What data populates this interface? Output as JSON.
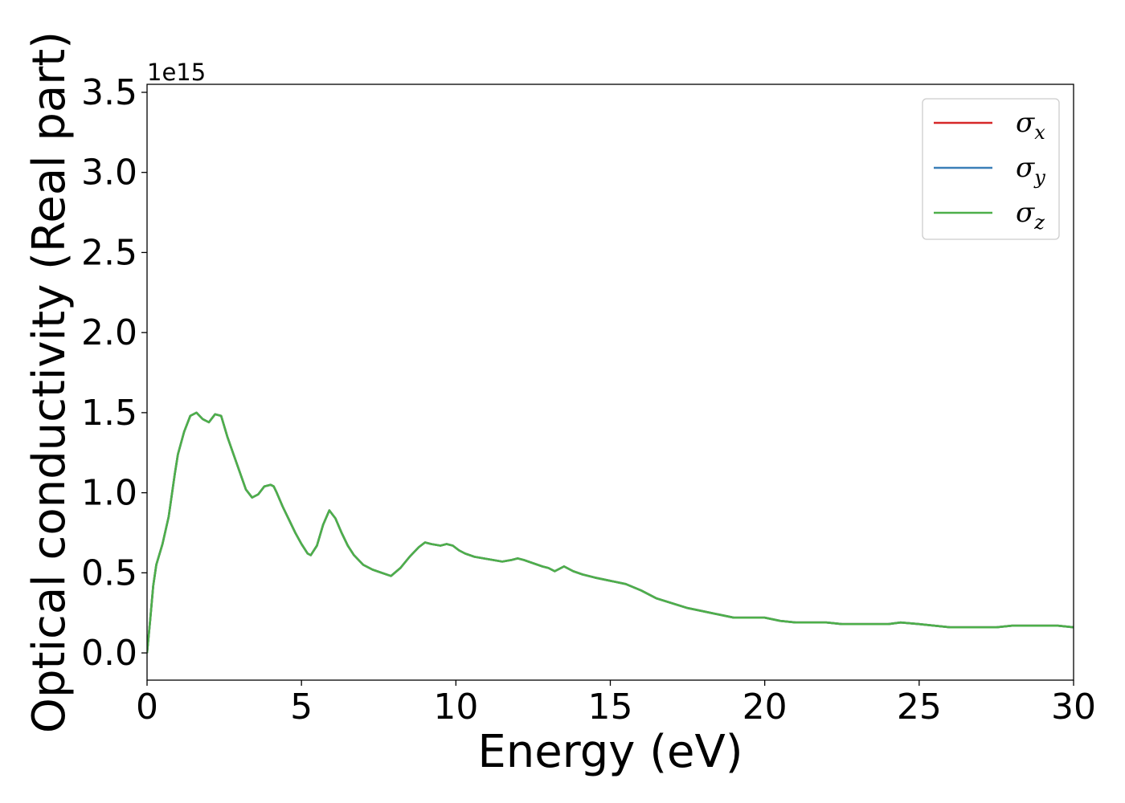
{
  "chart_data": {
    "type": "line",
    "xlabel": "Energy (eV)",
    "ylabel": "Optical conductivity (Real part)",
    "y_offset_label": "1e15",
    "y_multiplier": 1000000000000000.0,
    "xlim": [
      0,
      30
    ],
    "ylim": [
      -0.17,
      3.55
    ],
    "xticks": [
      0,
      5,
      10,
      15,
      20,
      25,
      30
    ],
    "xtick_labels": [
      "0",
      "5",
      "10",
      "15",
      "20",
      "25",
      "30"
    ],
    "yticks": [
      0.0,
      0.5,
      1.0,
      1.5,
      2.0,
      2.5,
      3.0,
      3.5
    ],
    "ytick_labels": [
      "0.0",
      "0.5",
      "1.0",
      "1.5",
      "2.0",
      "2.5",
      "3.0",
      "3.5"
    ],
    "grid": false,
    "legend_position": "top-right",
    "legend": [
      {
        "symbol": "σ",
        "sub": "x",
        "color": "#d62728"
      },
      {
        "symbol": "σ",
        "sub": "y",
        "color": "#3a7fb8"
      },
      {
        "symbol": "σ",
        "sub": "z",
        "color": "#4daf4a"
      }
    ],
    "x": [
      0,
      0.1,
      0.2,
      0.3,
      0.5,
      0.7,
      0.9,
      1.0,
      1.2,
      1.4,
      1.6,
      1.8,
      2.0,
      2.2,
      2.4,
      2.6,
      2.8,
      3.0,
      3.2,
      3.4,
      3.6,
      3.8,
      4.0,
      4.1,
      4.2,
      4.4,
      4.6,
      4.8,
      5.0,
      5.2,
      5.3,
      5.5,
      5.7,
      5.9,
      6.1,
      6.3,
      6.5,
      6.7,
      7.0,
      7.3,
      7.6,
      7.9,
      8.2,
      8.5,
      8.8,
      9.0,
      9.2,
      9.5,
      9.7,
      9.9,
      10.1,
      10.3,
      10.6,
      10.9,
      11.2,
      11.5,
      11.8,
      12.0,
      12.2,
      12.5,
      12.8,
      13.0,
      13.2,
      13.5,
      13.8,
      14.1,
      14.5,
      15.0,
      15.5,
      16.0,
      16.5,
      17.0,
      17.5,
      18.0,
      18.5,
      19.0,
      19.5,
      20.0,
      20.5,
      21.0,
      21.5,
      22.0,
      22.5,
      23.0,
      23.5,
      24.0,
      24.4,
      25.0,
      25.5,
      26.0,
      26.5,
      27.0,
      27.5,
      28.0,
      28.5,
      29.0,
      29.5,
      30.0
    ],
    "series": [
      {
        "color": "#d62728",
        "values": [
          0.0,
          0.2,
          0.42,
          0.55,
          0.68,
          0.85,
          1.12,
          1.24,
          1.38,
          1.48,
          1.5,
          1.46,
          1.44,
          1.49,
          1.48,
          1.35,
          1.24,
          1.13,
          1.02,
          0.97,
          0.99,
          1.04,
          1.05,
          1.04,
          1.0,
          0.91,
          0.83,
          0.75,
          0.68,
          0.62,
          0.61,
          0.67,
          0.8,
          0.89,
          0.84,
          0.75,
          0.67,
          0.61,
          0.55,
          0.52,
          0.5,
          0.48,
          0.53,
          0.6,
          0.66,
          0.69,
          0.68,
          0.67,
          0.68,
          0.67,
          0.64,
          0.62,
          0.6,
          0.59,
          0.58,
          0.57,
          0.58,
          0.59,
          0.58,
          0.56,
          0.54,
          0.53,
          0.51,
          0.54,
          0.51,
          0.49,
          0.47,
          0.45,
          0.43,
          0.39,
          0.34,
          0.31,
          0.28,
          0.26,
          0.24,
          0.22,
          0.22,
          0.22,
          0.2,
          0.19,
          0.19,
          0.19,
          0.18,
          0.18,
          0.18,
          0.18,
          0.19,
          0.18,
          0.17,
          0.16,
          0.16,
          0.16,
          0.16,
          0.17,
          0.17,
          0.17,
          0.17,
          0.16
        ]
      },
      {
        "color": "#3a7fb8",
        "values": [
          0.0,
          0.2,
          0.42,
          0.55,
          0.68,
          0.85,
          1.12,
          1.24,
          1.38,
          1.48,
          1.5,
          1.46,
          1.44,
          1.49,
          1.48,
          1.35,
          1.24,
          1.13,
          1.02,
          0.97,
          0.99,
          1.04,
          1.05,
          1.04,
          1.0,
          0.91,
          0.83,
          0.75,
          0.68,
          0.62,
          0.61,
          0.67,
          0.8,
          0.89,
          0.84,
          0.75,
          0.67,
          0.61,
          0.55,
          0.52,
          0.5,
          0.48,
          0.53,
          0.6,
          0.66,
          0.69,
          0.68,
          0.67,
          0.68,
          0.67,
          0.64,
          0.62,
          0.6,
          0.59,
          0.58,
          0.57,
          0.58,
          0.59,
          0.58,
          0.56,
          0.54,
          0.53,
          0.51,
          0.54,
          0.51,
          0.49,
          0.47,
          0.45,
          0.43,
          0.39,
          0.34,
          0.31,
          0.28,
          0.26,
          0.24,
          0.22,
          0.22,
          0.22,
          0.2,
          0.19,
          0.19,
          0.19,
          0.18,
          0.18,
          0.18,
          0.18,
          0.19,
          0.18,
          0.17,
          0.16,
          0.16,
          0.16,
          0.16,
          0.17,
          0.17,
          0.17,
          0.17,
          0.16
        ]
      },
      {
        "color": "#4daf4a",
        "values": [
          0.0,
          0.2,
          0.42,
          0.55,
          0.68,
          0.85,
          1.12,
          1.24,
          1.38,
          1.48,
          1.5,
          1.46,
          1.44,
          1.49,
          1.48,
          1.35,
          1.24,
          1.13,
          1.02,
          0.97,
          0.99,
          1.04,
          1.05,
          1.04,
          1.0,
          0.91,
          0.83,
          0.75,
          0.68,
          0.62,
          0.61,
          0.67,
          0.8,
          0.89,
          0.84,
          0.75,
          0.67,
          0.61,
          0.55,
          0.52,
          0.5,
          0.48,
          0.53,
          0.6,
          0.66,
          0.69,
          0.68,
          0.67,
          0.68,
          0.67,
          0.64,
          0.62,
          0.6,
          0.59,
          0.58,
          0.57,
          0.58,
          0.59,
          0.58,
          0.56,
          0.54,
          0.53,
          0.51,
          0.54,
          0.51,
          0.49,
          0.47,
          0.45,
          0.43,
          0.39,
          0.34,
          0.31,
          0.28,
          0.26,
          0.24,
          0.22,
          0.22,
          0.22,
          0.2,
          0.19,
          0.19,
          0.19,
          0.18,
          0.18,
          0.18,
          0.18,
          0.19,
          0.18,
          0.17,
          0.16,
          0.16,
          0.16,
          0.16,
          0.17,
          0.17,
          0.17,
          0.17,
          0.16
        ]
      }
    ]
  }
}
